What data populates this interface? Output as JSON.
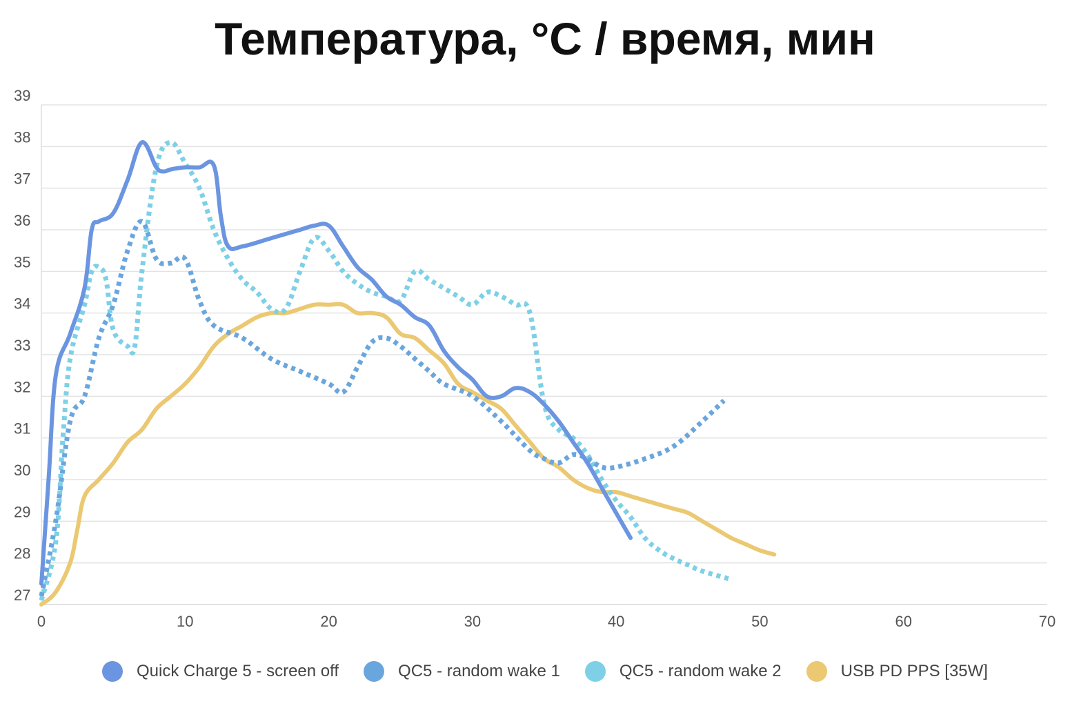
{
  "chart_data": {
    "type": "line",
    "title": "Температура, °C / время, мин",
    "xlabel": "",
    "ylabel": "",
    "xlim": [
      0,
      70
    ],
    "ylim": [
      27,
      39
    ],
    "x_ticks": [
      "0",
      "10",
      "20",
      "30",
      "40",
      "50",
      "60",
      "70"
    ],
    "y_ticks": [
      "27",
      "28",
      "29",
      "30",
      "31",
      "32",
      "33",
      "34",
      "35",
      "36",
      "37",
      "38",
      "39"
    ],
    "grid": true,
    "legend_position": "bottom",
    "series": [
      {
        "name": "Quick Charge 5 - screen off",
        "color": "#6b95e0",
        "style": "solid",
        "points": [
          [
            0,
            27.5
          ],
          [
            0.5,
            30
          ],
          [
            1,
            32.5
          ],
          [
            2,
            33.5
          ],
          [
            3,
            34.6
          ],
          [
            3.5,
            36
          ],
          [
            4,
            36.2
          ],
          [
            5,
            36.4
          ],
          [
            6,
            37.2
          ],
          [
            7,
            38.1
          ],
          [
            8,
            37.5
          ],
          [
            8.5,
            37.4
          ],
          [
            9,
            37.45
          ],
          [
            10,
            37.5
          ],
          [
            11,
            37.5
          ],
          [
            12,
            37.55
          ],
          [
            12.5,
            36.3
          ],
          [
            13,
            35.6
          ],
          [
            14,
            35.6
          ],
          [
            16,
            35.8
          ],
          [
            18,
            36
          ],
          [
            19,
            36.1
          ],
          [
            20,
            36.1
          ],
          [
            21,
            35.6
          ],
          [
            22,
            35.1
          ],
          [
            23,
            34.8
          ],
          [
            24,
            34.4
          ],
          [
            25,
            34.2
          ],
          [
            26,
            33.9
          ],
          [
            27,
            33.7
          ],
          [
            28,
            33.1
          ],
          [
            29,
            32.7
          ],
          [
            30,
            32.4
          ],
          [
            31,
            32
          ],
          [
            32,
            32
          ],
          [
            33,
            32.2
          ],
          [
            34,
            32.1
          ],
          [
            35,
            31.8
          ],
          [
            36,
            31.4
          ],
          [
            37,
            30.9
          ],
          [
            38,
            30.4
          ],
          [
            39,
            29.8
          ],
          [
            40,
            29.2
          ],
          [
            41,
            28.6
          ]
        ]
      },
      {
        "name": "QC5 - random wake 1",
        "color": "#6aa6de",
        "style": "dotted",
        "points": [
          [
            0,
            27.2
          ],
          [
            1,
            29
          ],
          [
            2,
            31.4
          ],
          [
            3,
            32
          ],
          [
            4,
            33.4
          ],
          [
            5,
            34.2
          ],
          [
            6,
            35.5
          ],
          [
            7,
            36.2
          ],
          [
            8,
            35.3
          ],
          [
            9,
            35.2
          ],
          [
            10,
            35.3
          ],
          [
            11,
            34.3
          ],
          [
            12,
            33.7
          ],
          [
            14,
            33.4
          ],
          [
            16,
            32.9
          ],
          [
            18,
            32.6
          ],
          [
            20,
            32.3
          ],
          [
            21,
            32.1
          ],
          [
            22,
            32.7
          ],
          [
            23,
            33.3
          ],
          [
            24,
            33.4
          ],
          [
            25,
            33.2
          ],
          [
            26,
            32.9
          ],
          [
            27,
            32.6
          ],
          [
            28,
            32.3
          ],
          [
            30,
            32
          ],
          [
            32,
            31.4
          ],
          [
            34,
            30.7
          ],
          [
            35,
            30.5
          ],
          [
            36,
            30.4
          ],
          [
            37,
            30.6
          ],
          [
            38,
            30.5
          ],
          [
            39,
            30.3
          ],
          [
            40,
            30.3
          ],
          [
            42,
            30.5
          ],
          [
            44,
            30.8
          ],
          [
            46,
            31.4
          ],
          [
            47.5,
            31.9
          ]
        ]
      },
      {
        "name": "QC5 - random wake 2",
        "color": "#7dd0e6",
        "style": "dotted",
        "points": [
          [
            0,
            27.1
          ],
          [
            1,
            28.5
          ],
          [
            1.5,
            31
          ],
          [
            2,
            32.9
          ],
          [
            3,
            34.2
          ],
          [
            3.5,
            35
          ],
          [
            4,
            35.1
          ],
          [
            4.5,
            34.8
          ],
          [
            5,
            33.6
          ],
          [
            6,
            33.2
          ],
          [
            6.5,
            33.2
          ],
          [
            7,
            35
          ],
          [
            8,
            37.5
          ],
          [
            9,
            38.1
          ],
          [
            10,
            37.6
          ],
          [
            11,
            37
          ],
          [
            12,
            36
          ],
          [
            13,
            35.3
          ],
          [
            14,
            34.8
          ],
          [
            15,
            34.5
          ],
          [
            16,
            34.1
          ],
          [
            17,
            34.1
          ],
          [
            18,
            35
          ],
          [
            19,
            35.8
          ],
          [
            20,
            35.5
          ],
          [
            21,
            35
          ],
          [
            22,
            34.7
          ],
          [
            23,
            34.5
          ],
          [
            24,
            34.4
          ],
          [
            25,
            34.3
          ],
          [
            26,
            35
          ],
          [
            27,
            34.8
          ],
          [
            28,
            34.6
          ],
          [
            29,
            34.4
          ],
          [
            30,
            34.2
          ],
          [
            31,
            34.5
          ],
          [
            32,
            34.4
          ],
          [
            33,
            34.2
          ],
          [
            34,
            34
          ],
          [
            35,
            31.8
          ],
          [
            36,
            31.2
          ],
          [
            37,
            31
          ],
          [
            38,
            30.6
          ],
          [
            39,
            30
          ],
          [
            40,
            29.5
          ],
          [
            41,
            29.1
          ],
          [
            42,
            28.6
          ],
          [
            43,
            28.3
          ],
          [
            44,
            28.1
          ],
          [
            45,
            27.95
          ],
          [
            46,
            27.8
          ],
          [
            48,
            27.6
          ]
        ]
      },
      {
        "name": "USB PD PPS [35W]",
        "color": "#ebc872",
        "style": "solid",
        "points": [
          [
            0,
            27
          ],
          [
            1,
            27.3
          ],
          [
            2,
            28
          ],
          [
            2.5,
            28.8
          ],
          [
            3,
            29.6
          ],
          [
            4,
            30
          ],
          [
            5,
            30.4
          ],
          [
            6,
            30.9
          ],
          [
            7,
            31.2
          ],
          [
            8,
            31.7
          ],
          [
            9,
            32
          ],
          [
            10,
            32.3
          ],
          [
            11,
            32.7
          ],
          [
            12,
            33.2
          ],
          [
            13,
            33.5
          ],
          [
            14,
            33.7
          ],
          [
            15,
            33.9
          ],
          [
            16,
            34
          ],
          [
            17,
            34
          ],
          [
            18,
            34.1
          ],
          [
            19,
            34.2
          ],
          [
            20,
            34.2
          ],
          [
            21,
            34.2
          ],
          [
            22,
            34
          ],
          [
            23,
            34
          ],
          [
            24,
            33.9
          ],
          [
            25,
            33.5
          ],
          [
            26,
            33.4
          ],
          [
            27,
            33.1
          ],
          [
            28,
            32.8
          ],
          [
            29,
            32.3
          ],
          [
            30,
            32.1
          ],
          [
            31,
            31.9
          ],
          [
            32,
            31.7
          ],
          [
            33,
            31.3
          ],
          [
            34,
            30.9
          ],
          [
            35,
            30.5
          ],
          [
            36,
            30.3
          ],
          [
            37,
            30
          ],
          [
            38,
            29.8
          ],
          [
            39,
            29.7
          ],
          [
            40,
            29.7
          ],
          [
            41,
            29.6
          ],
          [
            42,
            29.5
          ],
          [
            43,
            29.4
          ],
          [
            44,
            29.3
          ],
          [
            45,
            29.2
          ],
          [
            46,
            29
          ],
          [
            47,
            28.8
          ],
          [
            48,
            28.6
          ],
          [
            49,
            28.45
          ],
          [
            50,
            28.3
          ],
          [
            51,
            28.2
          ]
        ]
      }
    ]
  }
}
